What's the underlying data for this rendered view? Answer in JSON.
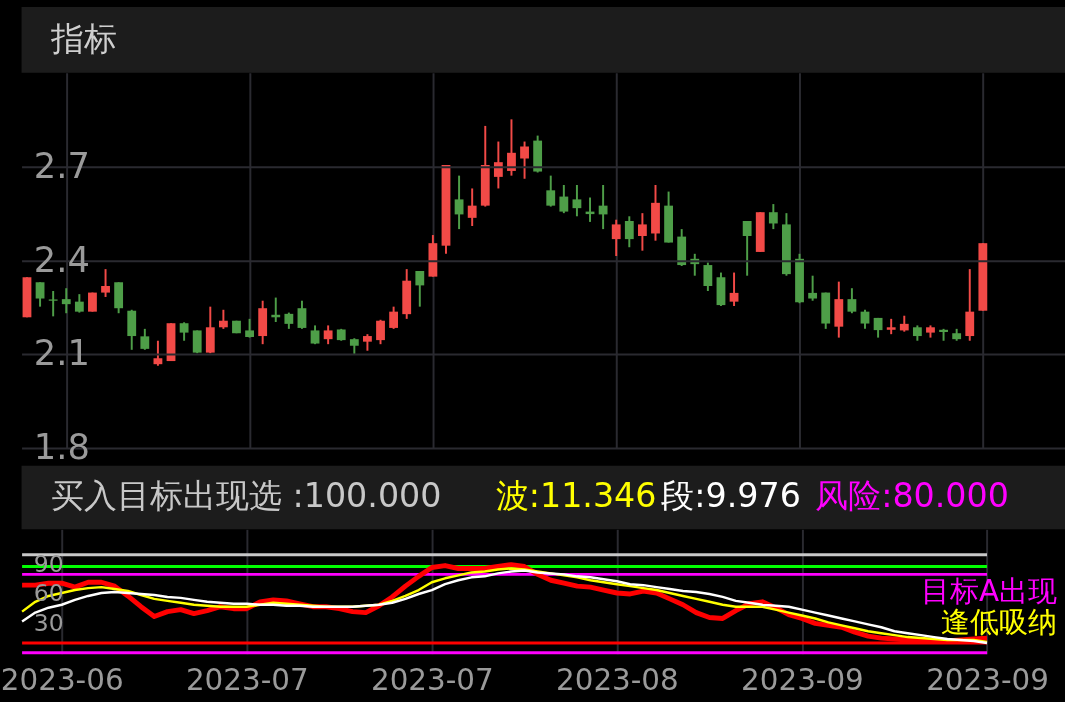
{
  "chart_data": [
    {
      "type": "candlestick",
      "title": "指标",
      "categories": [
        null,
        null,
        null,
        "2023-06",
        null,
        null,
        null,
        null,
        null,
        null,
        null,
        null,
        null,
        null,
        null,
        null,
        null,
        "2023-07",
        null,
        null,
        null,
        null,
        null,
        null,
        null,
        null,
        null,
        null,
        null,
        null,
        null,
        "2023-07",
        null,
        null,
        null,
        null,
        null,
        null,
        null,
        null,
        null,
        null,
        null,
        null,
        null,
        "2023-08",
        null,
        null,
        null,
        null,
        null,
        null,
        null,
        null,
        null,
        null,
        null,
        null,
        null,
        "2023-09",
        null,
        null,
        null,
        null,
        null,
        null,
        null,
        null,
        null,
        null,
        null,
        null,
        null,
        "2023-09"
      ],
      "ohlc": [
        [
          2.218,
          2.346,
          2.218,
          2.346
        ],
        [
          2.33,
          2.33,
          2.252,
          2.278
        ],
        [
          2.275,
          2.302,
          2.221,
          2.271
        ],
        [
          2.276,
          2.311,
          2.231,
          2.26
        ],
        [
          2.268,
          2.292,
          2.233,
          2.236
        ],
        [
          2.236,
          2.297,
          2.236,
          2.297
        ],
        [
          2.297,
          2.372,
          2.283,
          2.318
        ],
        [
          2.33,
          2.33,
          2.231,
          2.247
        ],
        [
          2.239,
          2.242,
          2.114,
          2.158
        ],
        [
          2.157,
          2.181,
          2.114,
          2.117
        ],
        [
          2.068,
          2.143,
          2.063,
          2.087
        ],
        [
          2.078,
          2.199,
          2.078,
          2.199
        ],
        [
          2.199,
          2.202,
          2.143,
          2.169
        ],
        [
          2.176,
          2.176,
          2.103,
          2.105
        ],
        [
          2.105,
          2.252,
          2.103,
          2.186
        ],
        [
          2.186,
          2.242,
          2.181,
          2.207
        ],
        [
          2.207,
          2.207,
          2.167,
          2.167
        ],
        [
          2.176,
          2.213,
          2.153,
          2.155
        ],
        [
          2.158,
          2.271,
          2.132,
          2.247
        ],
        [
          2.226,
          2.281,
          2.203,
          2.218
        ],
        [
          2.229,
          2.233,
          2.181,
          2.197
        ],
        [
          2.247,
          2.271,
          2.181,
          2.184
        ],
        [
          2.176,
          2.192,
          2.132,
          2.134
        ],
        [
          2.148,
          2.192,
          2.132,
          2.176
        ],
        [
          2.179,
          2.181,
          2.143,
          2.145
        ],
        [
          2.148,
          2.151,
          2.101,
          2.127
        ],
        [
          2.14,
          2.164,
          2.111,
          2.158
        ],
        [
          2.145,
          2.21,
          2.132,
          2.207
        ],
        [
          2.184,
          2.252,
          2.181,
          2.236
        ],
        [
          2.228,
          2.372,
          2.213,
          2.335
        ],
        [
          2.366,
          2.366,
          2.252,
          2.32
        ],
        [
          2.348,
          2.481,
          2.348,
          2.455
        ],
        [
          2.447,
          2.705,
          2.421,
          2.705
        ],
        [
          2.595,
          2.671,
          2.5,
          2.547
        ],
        [
          2.536,
          2.63,
          2.51,
          2.575
        ],
        [
          2.575,
          2.83,
          2.572,
          2.705
        ],
        [
          2.667,
          2.78,
          2.63,
          2.714
        ],
        [
          2.686,
          2.851,
          2.671,
          2.744
        ],
        [
          2.726,
          2.78,
          2.661,
          2.764
        ],
        [
          2.783,
          2.799,
          2.681,
          2.684
        ],
        [
          2.624,
          2.671,
          2.572,
          2.575
        ],
        [
          2.604,
          2.641,
          2.551,
          2.556
        ],
        [
          2.595,
          2.641,
          2.541,
          2.567
        ],
        [
          2.556,
          2.601,
          2.523,
          2.548
        ],
        [
          2.575,
          2.641,
          2.5,
          2.547
        ],
        [
          2.468,
          2.53,
          2.414,
          2.515
        ],
        [
          2.526,
          2.541,
          2.442,
          2.468
        ],
        [
          2.478,
          2.551,
          2.431,
          2.515
        ],
        [
          2.486,
          2.641,
          2.463,
          2.584
        ],
        [
          2.575,
          2.62,
          2.457,
          2.457
        ],
        [
          2.476,
          2.5,
          2.382,
          2.385
        ],
        [
          2.405,
          2.421,
          2.351,
          2.388
        ],
        [
          2.385,
          2.393,
          2.302,
          2.318
        ],
        [
          2.346,
          2.361,
          2.254,
          2.257
        ],
        [
          2.268,
          2.361,
          2.254,
          2.296
        ],
        [
          2.526,
          2.526,
          2.351,
          2.478
        ],
        [
          2.427,
          2.554,
          2.427,
          2.554
        ],
        [
          2.554,
          2.58,
          2.5,
          2.518
        ],
        [
          2.515,
          2.551,
          2.351,
          2.356
        ],
        [
          2.405,
          2.421,
          2.263,
          2.266
        ],
        [
          2.296,
          2.351,
          2.271,
          2.278
        ],
        [
          2.297,
          2.297,
          2.181,
          2.198
        ],
        [
          2.188,
          2.332,
          2.153,
          2.276
        ],
        [
          2.276,
          2.311,
          2.231,
          2.236
        ],
        [
          2.236,
          2.242,
          2.181,
          2.198
        ],
        [
          2.216,
          2.216,
          2.153,
          2.177
        ],
        [
          2.178,
          2.213,
          2.164,
          2.186
        ],
        [
          2.176,
          2.223,
          2.172,
          2.197
        ],
        [
          2.186,
          2.192,
          2.143,
          2.158
        ],
        [
          2.169,
          2.192,
          2.153,
          2.186
        ],
        [
          2.178,
          2.181,
          2.143,
          2.171
        ],
        [
          2.167,
          2.181,
          2.143,
          2.148
        ],
        [
          2.158,
          2.372,
          2.143,
          2.236
        ],
        [
          2.239,
          2.455,
          2.239,
          2.455
        ]
      ],
      "colors": [
        "#f24a47",
        "#4e9e48",
        "#4e9e48",
        "#4e9e48",
        "#4e9e48",
        "#f24a47",
        "#f24a47",
        "#4e9e48",
        "#4e9e48",
        "#4e9e48",
        "#f24a47",
        "#f24a47",
        "#4e9e48",
        "#4e9e48",
        "#f24a47",
        "#f24a47",
        "#4e9e48",
        "#4e9e48",
        "#f24a47",
        "#4e9e48",
        "#4e9e48",
        "#4e9e48",
        "#4e9e48",
        "#f24a47",
        "#4e9e48",
        "#4e9e48",
        "#f24a47",
        "#f24a47",
        "#f24a47",
        "#f24a47",
        "#4e9e48",
        "#f24a47",
        "#f24a47",
        "#4e9e48",
        "#f24a47",
        "#f24a47",
        "#f24a47",
        "#f24a47",
        "#f24a47",
        "#4e9e48",
        "#4e9e48",
        "#4e9e48",
        "#4e9e48",
        "#4e9e48",
        "#4e9e48",
        "#f24a47",
        "#4e9e48",
        "#f24a47",
        "#f24a47",
        "#4e9e48",
        "#4e9e48",
        "#4e9e48",
        "#4e9e48",
        "#4e9e48",
        "#f24a47",
        "#4e9e48",
        "#f24a47",
        "#4e9e48",
        "#4e9e48",
        "#4e9e48",
        "#4e9e48",
        "#4e9e48",
        "#f24a47",
        "#4e9e48",
        "#4e9e48",
        "#4e9e48",
        "#f24a47",
        "#f24a47",
        "#4e9e48",
        "#f24a47",
        "#4e9e48",
        "#4e9e48",
        "#f24a47",
        "#f24a47"
      ],
      "ylim": [
        1.8,
        3.0
      ],
      "yticks": [
        1.8,
        2.1,
        2.4,
        2.7
      ],
      "grid": true,
      "tick_labels": "y"
    },
    {
      "type": "line",
      "categories": [
        null,
        null,
        null,
        "2023-06",
        null,
        null,
        null,
        null,
        null,
        null,
        null,
        null,
        null,
        null,
        null,
        null,
        null,
        "2023-07",
        null,
        null,
        null,
        null,
        null,
        null,
        null,
        null,
        null,
        null,
        null,
        null,
        null,
        "2023-07",
        null,
        null,
        null,
        null,
        null,
        null,
        null,
        null,
        null,
        null,
        null,
        null,
        null,
        "2023-08",
        null,
        null,
        null,
        null,
        null,
        null,
        null,
        null,
        null,
        null,
        null,
        null,
        null,
        "2023-09",
        null,
        null,
        null,
        null,
        null,
        null,
        null,
        null,
        null,
        null,
        null,
        null,
        null,
        "2023-09"
      ],
      "series": [
        {
          "color": "#ff0000",
          "values": [
            69,
            69,
            71,
            71,
            67,
            72,
            72,
            68,
            58,
            47,
            37,
            42,
            44,
            40,
            43,
            47,
            45,
            45,
            52,
            54,
            53,
            50,
            47,
            47,
            45,
            42,
            41,
            48,
            57,
            68,
            78,
            87,
            89,
            86,
            86,
            86,
            88,
            90,
            88,
            80,
            74,
            71,
            68,
            67,
            64,
            61,
            60,
            63,
            61,
            55,
            49,
            41,
            36,
            35,
            43,
            50,
            52,
            46,
            39,
            35,
            30,
            28,
            26,
            21,
            17,
            15,
            14,
            13,
            12,
            12,
            12,
            13,
            14,
            15
          ]
        },
        {
          "name": "波:11.346",
          "color": "#ffff00",
          "values": [
            42,
            52,
            58,
            61,
            64,
            66,
            67,
            65,
            63,
            59,
            55,
            53,
            51,
            49,
            48,
            47,
            47,
            47,
            49,
            51,
            50,
            49,
            48,
            47,
            47,
            47,
            48,
            49,
            53,
            58,
            64,
            72,
            76,
            79,
            82,
            83,
            85,
            86,
            85,
            83,
            81,
            79,
            77,
            74,
            72,
            70,
            68,
            66,
            64,
            61,
            58,
            55,
            52,
            49,
            47,
            47,
            47,
            44,
            41,
            38,
            35,
            31,
            28,
            25,
            22,
            20,
            18,
            16,
            15,
            14,
            13,
            13,
            13,
            11
          ]
        },
        {
          "name": "段:9.976",
          "color": "#ffffff",
          "values": [
            32,
            41,
            46,
            49,
            54,
            58,
            61,
            62,
            61,
            60,
            59,
            57,
            56,
            54,
            52,
            51,
            50,
            50,
            49,
            49,
            48,
            48,
            47,
            47,
            47,
            47,
            48,
            49,
            51,
            55,
            60,
            64,
            70,
            74,
            77,
            78,
            81,
            83,
            84,
            82,
            81,
            80,
            78,
            77,
            75,
            73,
            70,
            69,
            67,
            65,
            63,
            62,
            60,
            57,
            53,
            51,
            49,
            48,
            47,
            44,
            41,
            38,
            35,
            32,
            29,
            26,
            22,
            20,
            18,
            16,
            14,
            13,
            12,
            10
          ]
        }
      ],
      "ref_lines": [
        {
          "axis": "y",
          "value": 100,
          "label": "买入目标出现选  :100.000",
          "color": "#c8c8c8"
        },
        {
          "axis": "y",
          "value": 88,
          "label": null,
          "color": "#00ff00"
        },
        {
          "axis": "y",
          "value": 80,
          "label": "风险:80.000",
          "color": "#ff00ff"
        },
        {
          "axis": "y",
          "value": 10,
          "label": null,
          "color": "#ff0000"
        },
        {
          "axis": "y",
          "value": 0,
          "label": null,
          "color": "#ff00ff"
        }
      ],
      "ylim": [
        -1,
        126
      ],
      "yticks": [
        30,
        60,
        90
      ],
      "grid": "x",
      "legend": "top",
      "annotations": [
        "目标A出现",
        "逢低吸纳"
      ]
    }
  ]
}
